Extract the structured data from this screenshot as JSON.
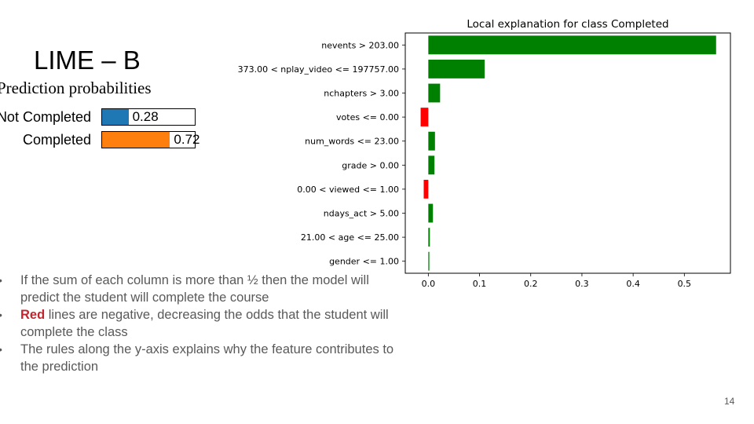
{
  "slide": {
    "title": "LIME – B",
    "page_number": "14"
  },
  "prediction_probabilities": {
    "heading": "Prediction probabilities",
    "items": [
      {
        "label": "Not Completed",
        "value": 0.28,
        "value_text": "0.28",
        "color": "#1f77b4"
      },
      {
        "label": "Completed",
        "value": 0.72,
        "value_text": "0.72",
        "color": "#ff7f0e"
      }
    ]
  },
  "bullets": [
    {
      "highlight": "",
      "text": "If the sum of each column is more than ½ then the model will predict the student will complete the course"
    },
    {
      "highlight": "Red",
      "text": " lines are negative, decreasing the odds that the student will complete the class"
    },
    {
      "highlight": "",
      "text": "The rules along the y-axis explains why the feature contributes to the prediction"
    }
  ],
  "chart_data": {
    "type": "bar",
    "orientation": "horizontal",
    "title": "Local explanation for class Completed",
    "xlabel": "",
    "ylabel": "",
    "xlim": [
      -0.045,
      0.59
    ],
    "xticks": [
      0.0,
      0.1,
      0.2,
      0.3,
      0.4,
      0.5
    ],
    "xtick_labels": [
      "0.0",
      "0.1",
      "0.2",
      "0.3",
      "0.4",
      "0.5"
    ],
    "categories": [
      "nevents > 203.00",
      "373.00 < nplay_video <= 197757.00",
      "nchapters > 3.00",
      "votes <= 0.00",
      "num_words <= 23.00",
      "grade > 0.00",
      "0.00 < viewed <= 1.00",
      "ndays_act > 5.00",
      "21.00 < age <= 25.00",
      "gender <= 1.00"
    ],
    "values": [
      0.562,
      0.11,
      0.023,
      -0.015,
      0.013,
      0.012,
      -0.009,
      0.009,
      0.003,
      0.002
    ],
    "positive_color": "#008000",
    "negative_color": "#ff0000",
    "grid": false
  }
}
